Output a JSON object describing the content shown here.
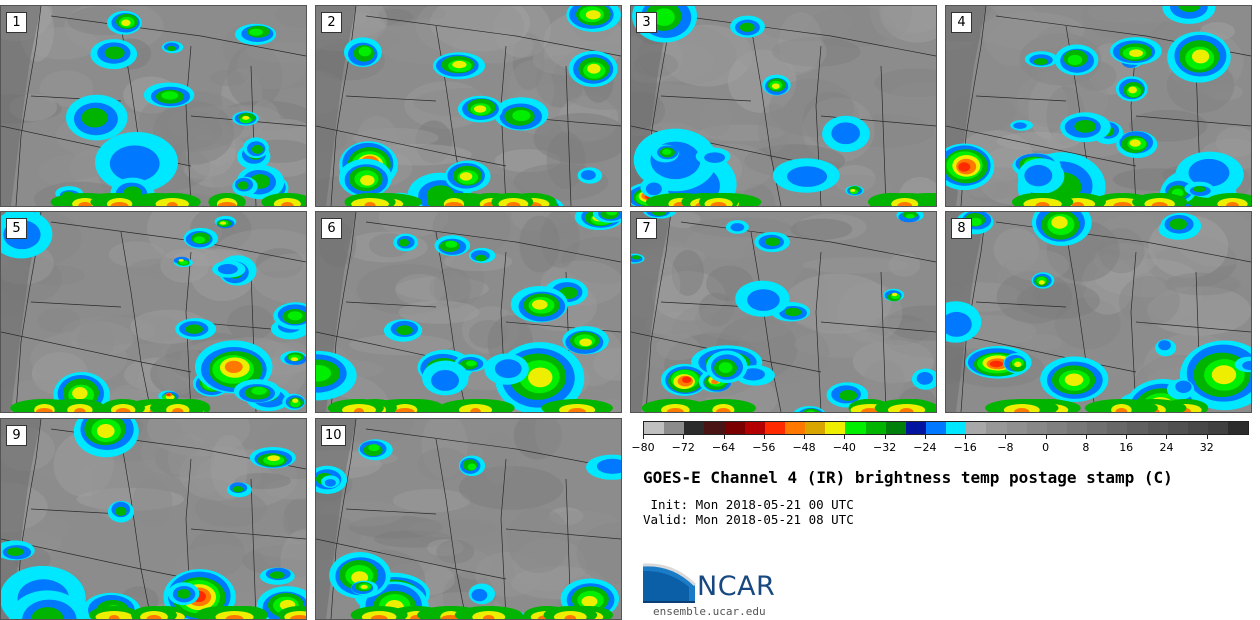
{
  "panels": [
    {
      "label": "1"
    },
    {
      "label": "2"
    },
    {
      "label": "3"
    },
    {
      "label": "4"
    },
    {
      "label": "5"
    },
    {
      "label": "6"
    },
    {
      "label": "7"
    },
    {
      "label": "8"
    },
    {
      "label": "9"
    },
    {
      "label": "10"
    }
  ],
  "colorbar": {
    "colors": [
      "#c0c0c0",
      "#8c8c8c",
      "#2b2b2b",
      "#4a1414",
      "#7a0000",
      "#b40000",
      "#ff2a00",
      "#ff7800",
      "#d9a600",
      "#eeee00",
      "#00ee00",
      "#00b400",
      "#00800a",
      "#0014a0",
      "#0078ff",
      "#00e8ff",
      "#a8a8a8",
      "#989898",
      "#909090",
      "#888888",
      "#808080",
      "#787878",
      "#707070",
      "#686868",
      "#606060",
      "#585858",
      "#505050",
      "#484848",
      "#404040",
      "#2c2c2c"
    ],
    "tick_values": [
      -80,
      -72,
      -64,
      -56,
      -48,
      -40,
      -32,
      -24,
      -16,
      -8,
      0,
      8,
      16,
      24,
      32
    ],
    "tick_labels": [
      "−80",
      "−72",
      "−64",
      "−56",
      "−48",
      "−40",
      "−32",
      "−24",
      "−16",
      "−8",
      "0",
      "8",
      "16",
      "24",
      "32"
    ]
  },
  "title": "GOES-E Channel 4 (IR) brightness temp postage stamp (C)",
  "init_text": " Init: Mon 2018-05-21 00 UTC",
  "valid_text": "Valid: Mon 2018-05-21 08 UTC",
  "logo": {
    "text": "NCAR",
    "url": "ensemble.ucar.edu"
  }
}
